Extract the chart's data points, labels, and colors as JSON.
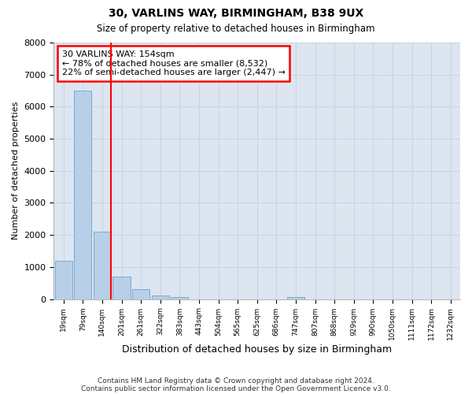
{
  "title1": "30, VARLINS WAY, BIRMINGHAM, B38 9UX",
  "title2": "Size of property relative to detached houses in Birmingham",
  "xlabel": "Distribution of detached houses by size in Birmingham",
  "ylabel": "Number of detached properties",
  "categories": [
    "19sqm",
    "79sqm",
    "140sqm",
    "201sqm",
    "261sqm",
    "322sqm",
    "383sqm",
    "443sqm",
    "504sqm",
    "565sqm",
    "625sqm",
    "686sqm",
    "747sqm",
    "807sqm",
    "868sqm",
    "929sqm",
    "990sqm",
    "1050sqm",
    "1111sqm",
    "1172sqm",
    "1232sqm"
  ],
  "values": [
    1200,
    6500,
    2100,
    700,
    300,
    120,
    70,
    0,
    0,
    0,
    0,
    0,
    55,
    0,
    0,
    0,
    0,
    0,
    0,
    0,
    0
  ],
  "bar_color": "#b8cfe8",
  "bar_edge_color": "#7aaad0",
  "vline_label": "30 VARLINS WAY: 154sqm",
  "annotation_line1": "← 78% of detached houses are smaller (8,532)",
  "annotation_line2": "22% of semi-detached houses are larger (2,447) →",
  "annotation_box_color": "white",
  "annotation_box_edge_color": "red",
  "vline_color": "red",
  "ylim": [
    0,
    8000
  ],
  "yticks": [
    0,
    1000,
    2000,
    3000,
    4000,
    5000,
    6000,
    7000,
    8000
  ],
  "grid_color": "#c8d4e8",
  "bg_color": "#dde6f0",
  "footer1": "Contains HM Land Registry data © Crown copyright and database right 2024.",
  "footer2": "Contains public sector information licensed under the Open Government Licence v3.0."
}
